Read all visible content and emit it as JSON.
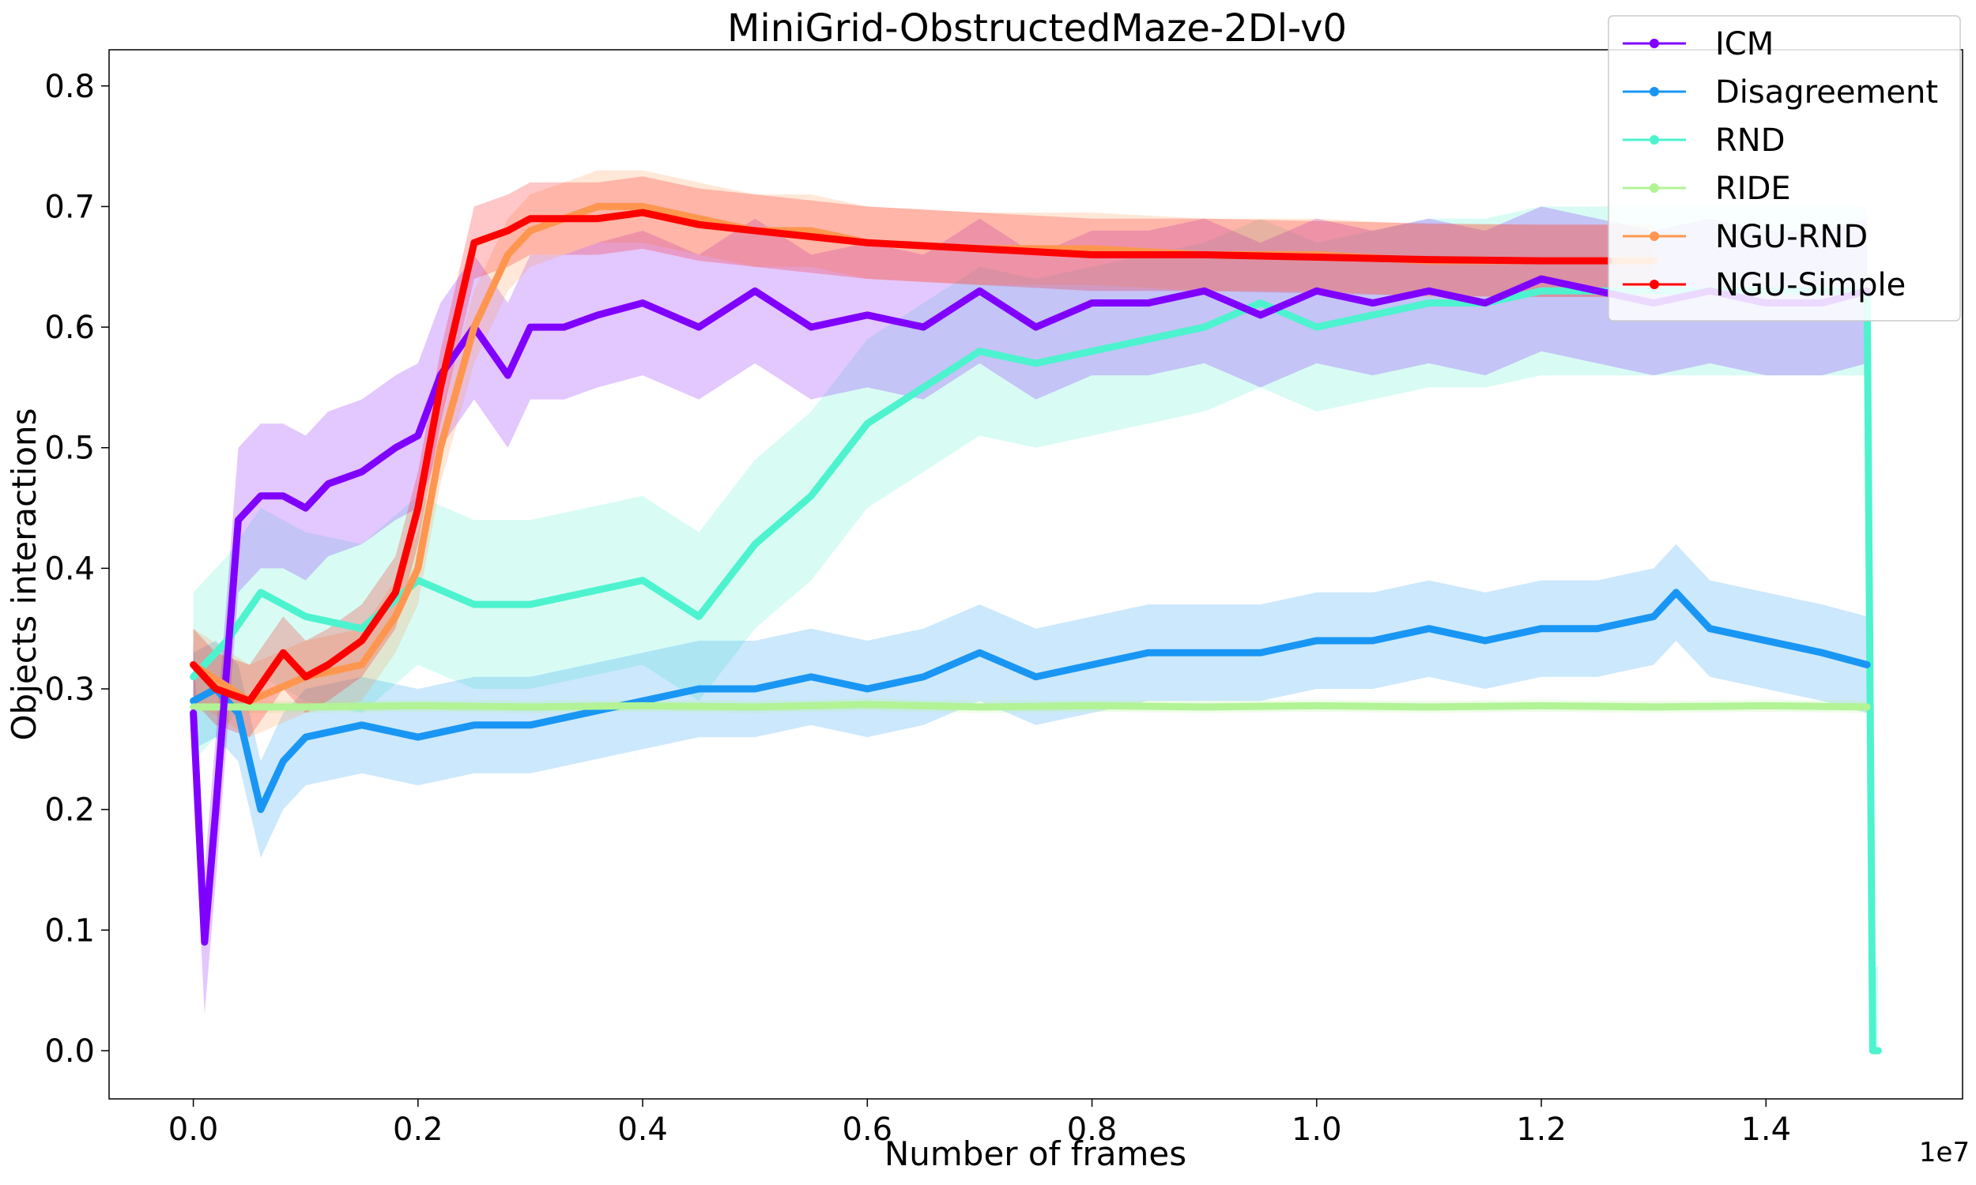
{
  "chart_data": {
    "type": "line",
    "title": "MiniGrid-ObstructedMaze-2Dl-v0",
    "xlabel": "Number of frames",
    "ylabel": "Objects interactions",
    "x_offset_label": "1e7",
    "xlim": [
      -0.075,
      1.575
    ],
    "ylim": [
      -0.04,
      0.83
    ],
    "x_ticks": [
      0.0,
      0.2,
      0.4,
      0.6,
      0.8,
      1.0,
      1.2,
      1.4
    ],
    "x_tick_labels": [
      "0.0",
      "0.2",
      "0.4",
      "0.6",
      "0.8",
      "1.0",
      "1.2",
      "1.4"
    ],
    "y_ticks": [
      0.0,
      0.1,
      0.2,
      0.3,
      0.4,
      0.5,
      0.6,
      0.7,
      0.8
    ],
    "y_tick_labels": [
      "0.0",
      "0.1",
      "0.2",
      "0.3",
      "0.4",
      "0.5",
      "0.6",
      "0.7",
      "0.8"
    ],
    "grid": false,
    "legend_position": "top-right",
    "series": [
      {
        "name": "ICM",
        "color": "#8000ff",
        "x": [
          0.0,
          0.01,
          0.02,
          0.04,
          0.06,
          0.08,
          0.1,
          0.12,
          0.15,
          0.18,
          0.2,
          0.22,
          0.25,
          0.28,
          0.3,
          0.33,
          0.36,
          0.4,
          0.45,
          0.5,
          0.55,
          0.6,
          0.65,
          0.7,
          0.75,
          0.8,
          0.85,
          0.9,
          0.95,
          1.0,
          1.05,
          1.1,
          1.15,
          1.2,
          1.25,
          1.3,
          1.35,
          1.4,
          1.45,
          1.49
        ],
        "y": [
          0.28,
          0.09,
          0.2,
          0.44,
          0.46,
          0.46,
          0.45,
          0.47,
          0.48,
          0.5,
          0.51,
          0.56,
          0.6,
          0.56,
          0.6,
          0.6,
          0.61,
          0.62,
          0.6,
          0.63,
          0.6,
          0.61,
          0.6,
          0.63,
          0.6,
          0.62,
          0.62,
          0.63,
          0.61,
          0.63,
          0.62,
          0.63,
          0.62,
          0.64,
          0.63,
          0.62,
          0.63,
          0.62,
          0.62,
          0.63
        ],
        "band": 0.06
      },
      {
        "name": "Disagreement",
        "color": "#1996f3",
        "x": [
          0.0,
          0.02,
          0.04,
          0.06,
          0.08,
          0.1,
          0.15,
          0.2,
          0.25,
          0.3,
          0.35,
          0.4,
          0.45,
          0.5,
          0.55,
          0.6,
          0.65,
          0.7,
          0.75,
          0.8,
          0.85,
          0.9,
          0.95,
          1.0,
          1.05,
          1.1,
          1.15,
          1.2,
          1.25,
          1.3,
          1.32,
          1.35,
          1.4,
          1.45,
          1.49
        ],
        "y": [
          0.29,
          0.3,
          0.28,
          0.2,
          0.24,
          0.26,
          0.27,
          0.26,
          0.27,
          0.27,
          0.28,
          0.29,
          0.3,
          0.3,
          0.31,
          0.3,
          0.31,
          0.33,
          0.31,
          0.32,
          0.33,
          0.33,
          0.33,
          0.34,
          0.34,
          0.35,
          0.34,
          0.35,
          0.35,
          0.36,
          0.38,
          0.35,
          0.34,
          0.33,
          0.32
        ],
        "band": 0.04
      },
      {
        "name": "RND",
        "color": "#4df3ce",
        "x": [
          0.0,
          0.03,
          0.06,
          0.1,
          0.15,
          0.2,
          0.25,
          0.3,
          0.35,
          0.4,
          0.45,
          0.5,
          0.55,
          0.6,
          0.65,
          0.7,
          0.75,
          0.8,
          0.85,
          0.9,
          0.95,
          1.0,
          1.05,
          1.1,
          1.15,
          1.2,
          1.25,
          1.3,
          1.35,
          1.4,
          1.45,
          1.49,
          1.495,
          1.5
        ],
        "y": [
          0.31,
          0.34,
          0.38,
          0.36,
          0.35,
          0.39,
          0.37,
          0.37,
          0.38,
          0.39,
          0.36,
          0.42,
          0.46,
          0.52,
          0.55,
          0.58,
          0.57,
          0.58,
          0.59,
          0.6,
          0.62,
          0.6,
          0.61,
          0.62,
          0.62,
          0.63,
          0.63,
          0.63,
          0.63,
          0.63,
          0.63,
          0.63,
          0.0,
          0.0
        ],
        "band": 0.07
      },
      {
        "name": "RIDE",
        "color": "#b2f396",
        "x": [
          0.0,
          0.1,
          0.2,
          0.3,
          0.4,
          0.5,
          0.6,
          0.7,
          0.8,
          0.9,
          1.0,
          1.1,
          1.2,
          1.3,
          1.4,
          1.49
        ],
        "y": [
          0.285,
          0.285,
          0.286,
          0.285,
          0.286,
          0.285,
          0.287,
          0.285,
          0.286,
          0.285,
          0.286,
          0.285,
          0.286,
          0.285,
          0.286,
          0.285
        ],
        "band": 0.005
      },
      {
        "name": "NGU-RND",
        "color": "#ff964f",
        "x": [
          0.0,
          0.05,
          0.1,
          0.15,
          0.18,
          0.2,
          0.22,
          0.25,
          0.28,
          0.3,
          0.33,
          0.36,
          0.4,
          0.45,
          0.5,
          0.55,
          0.6,
          0.7,
          0.8,
          0.9,
          1.0,
          1.1,
          1.2,
          1.3
        ],
        "y": [
          0.32,
          0.29,
          0.31,
          0.32,
          0.36,
          0.4,
          0.5,
          0.6,
          0.66,
          0.68,
          0.69,
          0.7,
          0.7,
          0.69,
          0.68,
          0.68,
          0.67,
          0.665,
          0.665,
          0.66,
          0.66,
          0.655,
          0.655,
          0.655
        ],
        "band": 0.03
      },
      {
        "name": "NGU-Simple",
        "color": "#ff0000",
        "x": [
          0.0,
          0.02,
          0.05,
          0.08,
          0.1,
          0.12,
          0.15,
          0.18,
          0.2,
          0.22,
          0.25,
          0.28,
          0.3,
          0.33,
          0.36,
          0.4,
          0.45,
          0.5,
          0.55,
          0.6,
          0.7,
          0.8,
          0.9,
          1.0,
          1.1,
          1.2,
          1.26
        ],
        "y": [
          0.32,
          0.3,
          0.29,
          0.33,
          0.31,
          0.32,
          0.34,
          0.38,
          0.45,
          0.55,
          0.67,
          0.68,
          0.69,
          0.69,
          0.69,
          0.695,
          0.685,
          0.68,
          0.675,
          0.67,
          0.665,
          0.66,
          0.66,
          0.658,
          0.656,
          0.655,
          0.655
        ],
        "band": 0.03
      }
    ]
  }
}
